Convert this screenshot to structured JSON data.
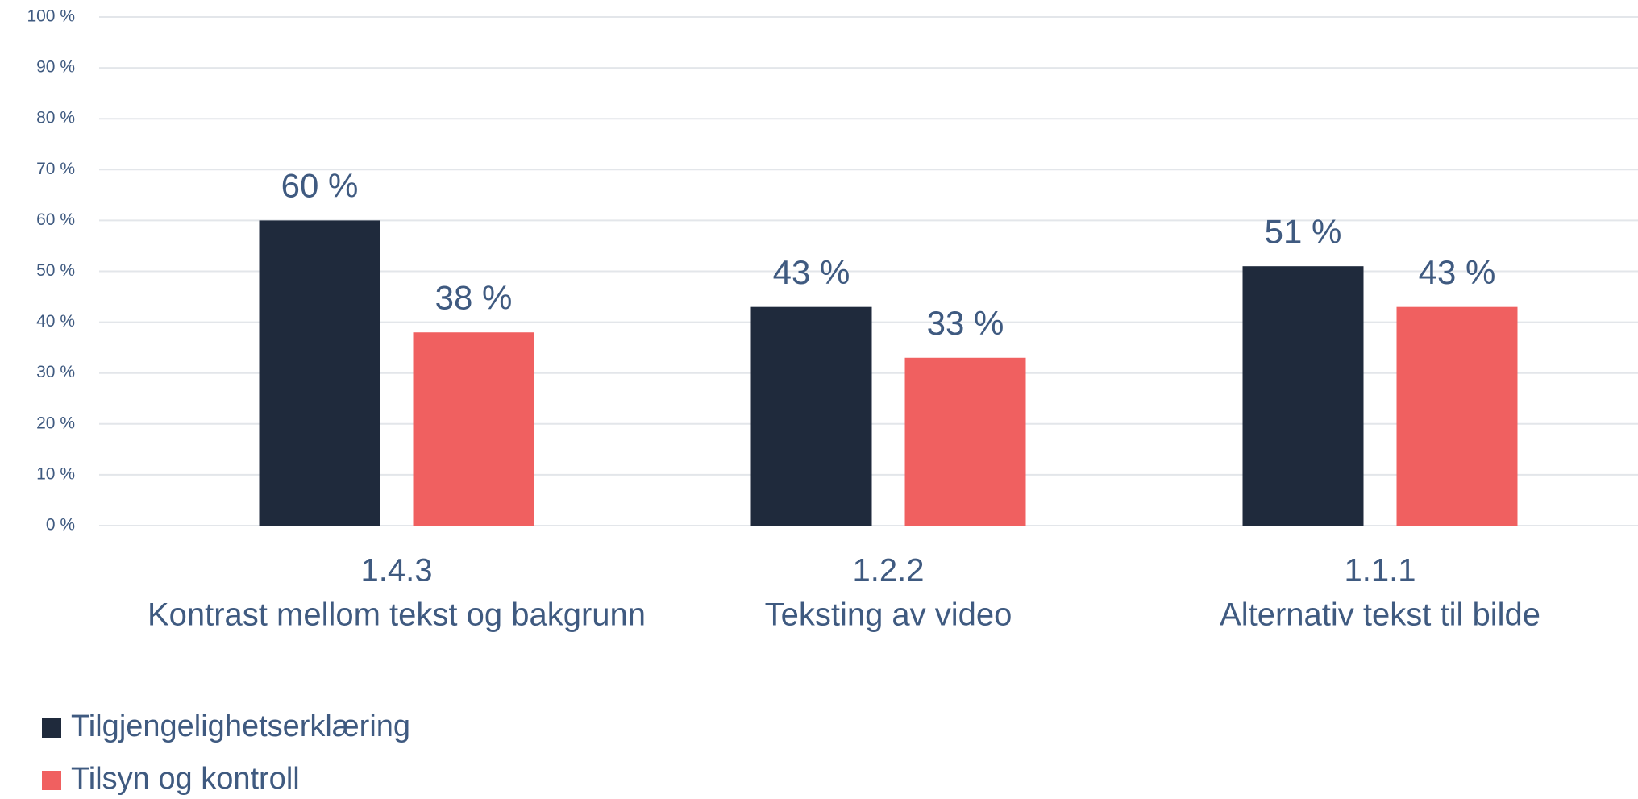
{
  "chart_data": {
    "type": "bar",
    "categories": [
      [
        "1.4.3",
        "Kontrast mellom tekst og bakgrunn"
      ],
      [
        "1.2.2",
        "Teksting av video"
      ],
      [
        "1.1.1",
        "Alternativ tekst til bilde"
      ]
    ],
    "series": [
      {
        "name": "Tilgjengelighetserklæring",
        "color": "#1f2a3c",
        "values": [
          60,
          43,
          51
        ],
        "value_labels": [
          "60 %",
          "43 %",
          "51 %"
        ]
      },
      {
        "name": "Tilsyn og kontroll",
        "color": "#f06060",
        "values": [
          38,
          33,
          43
        ],
        "value_labels": [
          "38 %",
          "33 %",
          "43 %"
        ]
      }
    ],
    "ylim": [
      0,
      100
    ],
    "yticks": [
      {
        "value": 0,
        "label": "0 %"
      },
      {
        "value": 10,
        "label": "10 %"
      },
      {
        "value": 20,
        "label": "20 %"
      },
      {
        "value": 30,
        "label": "30 %"
      },
      {
        "value": 40,
        "label": "40 %"
      },
      {
        "value": 50,
        "label": "50 %"
      },
      {
        "value": 60,
        "label": "60 %"
      },
      {
        "value": 70,
        "label": "70 %"
      },
      {
        "value": 80,
        "label": "80 %"
      },
      {
        "value": 90,
        "label": "90 %"
      },
      {
        "value": 100,
        "label": "100 %"
      }
    ],
    "grid": true,
    "legend": "bottom-left"
  }
}
